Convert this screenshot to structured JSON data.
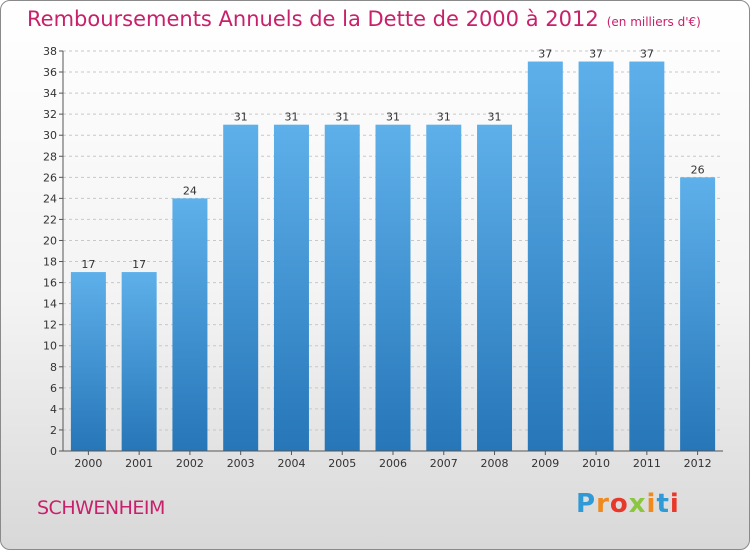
{
  "chart_data": {
    "type": "bar",
    "title": "Remboursements Annuels de la Dette de 2000 à 2012",
    "unit_note": "(en milliers d'€)",
    "categories": [
      "2000",
      "2001",
      "2002",
      "2003",
      "2004",
      "2005",
      "2006",
      "2007",
      "2008",
      "2009",
      "2010",
      "2011",
      "2012"
    ],
    "values": [
      17,
      17,
      24,
      31,
      31,
      31,
      31,
      31,
      31,
      37,
      37,
      37,
      26
    ],
    "ylim": [
      0,
      38
    ],
    "yticks": [
      0,
      2,
      4,
      6,
      8,
      10,
      12,
      14,
      16,
      18,
      20,
      22,
      24,
      26,
      28,
      30,
      32,
      34,
      36,
      38
    ],
    "grid": true,
    "bar_color_top": "#5eb0ea",
    "bar_color_bottom": "#2676b8"
  },
  "commune": "SCHWENHEIM",
  "brand": {
    "letters": [
      "P",
      "r",
      "o",
      "x",
      "i",
      "t",
      "i"
    ],
    "colors": [
      "#2f9ad6",
      "#f08a1c",
      "#e8382a",
      "#8cc63f",
      "#f08a1c",
      "#2f9ad6",
      "#e8382a"
    ]
  },
  "colors": {
    "accent": "#c8206a",
    "axis": "#555555",
    "grid": "#c8c8c8"
  }
}
